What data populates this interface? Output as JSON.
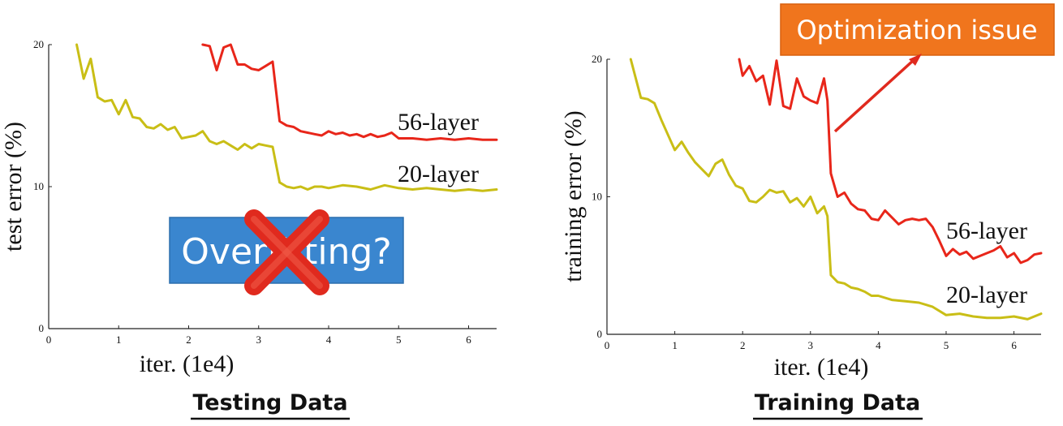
{
  "chart_data": [
    {
      "type": "line",
      "caption": "Testing Data",
      "xlabel": "iter. (1e4)",
      "ylabel": "test error (%)",
      "xlim": [
        0,
        6.4
      ],
      "ylim": [
        0,
        20
      ],
      "xticks": [
        "0",
        "1",
        "2",
        "3",
        "4",
        "5",
        "6"
      ],
      "yticks": [
        "0",
        "10",
        "20"
      ],
      "series": [
        {
          "name": "56-layer",
          "color": "#e8261a",
          "x": [
            2.2,
            2.3,
            2.4,
            2.5,
            2.6,
            2.7,
            2.8,
            2.9,
            3.0,
            3.1,
            3.2,
            3.3,
            3.4,
            3.5,
            3.6,
            3.7,
            3.8,
            3.9,
            4.0,
            4.1,
            4.2,
            4.3,
            4.4,
            4.5,
            4.6,
            4.7,
            4.8,
            4.9,
            5.0,
            5.2,
            5.4,
            5.6,
            5.8,
            6.0,
            6.2,
            6.4
          ],
          "y": [
            20,
            19.9,
            18.2,
            19.8,
            20,
            18.6,
            18.6,
            18.3,
            18.2,
            18.5,
            18.8,
            14.6,
            14.3,
            14.2,
            13.9,
            13.8,
            13.7,
            13.6,
            13.9,
            13.7,
            13.8,
            13.6,
            13.7,
            13.5,
            13.7,
            13.5,
            13.6,
            13.8,
            13.4,
            13.4,
            13.3,
            13.4,
            13.3,
            13.4,
            13.3,
            13.3
          ]
        },
        {
          "name": "20-layer",
          "color": "#c9be16",
          "x": [
            0.4,
            0.5,
            0.6,
            0.7,
            0.8,
            0.9,
            1.0,
            1.1,
            1.2,
            1.3,
            1.4,
            1.5,
            1.6,
            1.7,
            1.8,
            1.9,
            2.0,
            2.1,
            2.2,
            2.3,
            2.4,
            2.5,
            2.6,
            2.7,
            2.8,
            2.9,
            3.0,
            3.1,
            3.2,
            3.3,
            3.4,
            3.5,
            3.6,
            3.7,
            3.8,
            3.9,
            4.0,
            4.2,
            4.4,
            4.6,
            4.8,
            5.0,
            5.2,
            5.4,
            5.6,
            5.8,
            6.0,
            6.2,
            6.4
          ],
          "y": [
            20,
            17.6,
            19,
            16.3,
            16,
            16.1,
            15.1,
            16.1,
            14.9,
            14.8,
            14.2,
            14.1,
            14.4,
            14.0,
            14.2,
            13.4,
            13.5,
            13.6,
            13.9,
            13.2,
            13.0,
            13.2,
            12.9,
            12.6,
            13.0,
            12.7,
            13.0,
            12.9,
            12.8,
            10.3,
            10.0,
            9.9,
            10.0,
            9.8,
            10.0,
            10.0,
            9.9,
            10.1,
            10.0,
            9.8,
            10.1,
            9.9,
            9.8,
            9.9,
            9.8,
            9.7,
            9.8,
            9.7,
            9.8
          ]
        }
      ],
      "annotations": [
        "Overfitting?"
      ]
    },
    {
      "type": "line",
      "caption": "Training Data",
      "xlabel": "iter. (1e4)",
      "ylabel": "training error (%)",
      "xlim": [
        0,
        6.4
      ],
      "ylim": [
        0,
        20
      ],
      "xticks": [
        "0",
        "1",
        "2",
        "3",
        "4",
        "5",
        "6"
      ],
      "yticks": [
        "0",
        "10",
        "20"
      ],
      "series": [
        {
          "name": "56-layer",
          "color": "#e8261a",
          "x": [
            1.95,
            2.0,
            2.1,
            2.2,
            2.3,
            2.4,
            2.5,
            2.6,
            2.7,
            2.8,
            2.9,
            3.0,
            3.1,
            3.2,
            3.25,
            3.3,
            3.4,
            3.5,
            3.6,
            3.7,
            3.8,
            3.9,
            4.0,
            4.1,
            4.2,
            4.3,
            4.4,
            4.5,
            4.6,
            4.7,
            4.8,
            4.9,
            5.0,
            5.1,
            5.2,
            5.3,
            5.4,
            5.5,
            5.6,
            5.7,
            5.8,
            5.9,
            6.0,
            6.1,
            6.2,
            6.3,
            6.4
          ],
          "y": [
            20,
            18.8,
            19.5,
            18.4,
            18.8,
            16.7,
            19.9,
            16.6,
            16.4,
            18.6,
            17.3,
            17.0,
            16.8,
            18.6,
            17.0,
            11.7,
            10.0,
            10.3,
            9.5,
            9.1,
            9.0,
            8.4,
            8.3,
            9.0,
            8.5,
            8.0,
            8.3,
            8.4,
            8.3,
            8.4,
            7.8,
            6.8,
            5.7,
            6.2,
            5.8,
            6.0,
            5.5,
            5.7,
            5.9,
            6.1,
            6.4,
            5.6,
            5.9,
            5.2,
            5.4,
            5.8,
            5.9
          ]
        },
        {
          "name": "20-layer",
          "color": "#c9be16",
          "x": [
            0.35,
            0.5,
            0.6,
            0.7,
            0.8,
            0.9,
            1.0,
            1.1,
            1.2,
            1.3,
            1.4,
            1.5,
            1.6,
            1.7,
            1.8,
            1.9,
            2.0,
            2.1,
            2.2,
            2.3,
            2.4,
            2.5,
            2.6,
            2.7,
            2.8,
            2.9,
            3.0,
            3.1,
            3.2,
            3.25,
            3.3,
            3.4,
            3.5,
            3.6,
            3.7,
            3.8,
            3.9,
            4.0,
            4.2,
            4.4,
            4.6,
            4.8,
            5.0,
            5.2,
            5.4,
            5.6,
            5.8,
            6.0,
            6.2,
            6.4
          ],
          "y": [
            20,
            17.2,
            17.1,
            16.8,
            15.6,
            14.5,
            13.4,
            14.0,
            13.2,
            12.5,
            12.0,
            11.5,
            12.4,
            12.7,
            11.6,
            10.8,
            10.6,
            9.7,
            9.6,
            10.0,
            10.5,
            10.3,
            10.4,
            9.6,
            9.9,
            9.3,
            10.0,
            8.8,
            9.3,
            8.6,
            4.3,
            3.8,
            3.7,
            3.4,
            3.3,
            3.1,
            2.8,
            2.8,
            2.5,
            2.4,
            2.3,
            2.0,
            1.4,
            1.5,
            1.3,
            1.2,
            1.2,
            1.3,
            1.1,
            1.5
          ]
        }
      ],
      "annotations": [
        "Optimization issue"
      ]
    }
  ]
}
